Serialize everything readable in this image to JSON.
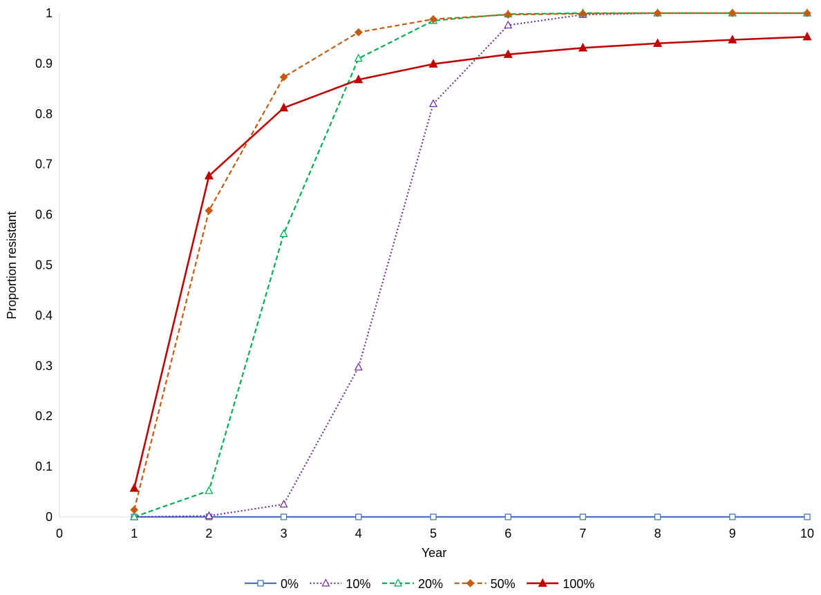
{
  "chart_data": {
    "type": "line",
    "title": "",
    "xlabel": "Year",
    "ylabel": "Proportion resistant",
    "xlim": [
      0,
      10
    ],
    "ylim": [
      0,
      1
    ],
    "x_ticks": [
      "0",
      "1",
      "2",
      "3",
      "4",
      "5",
      "6",
      "7",
      "8",
      "9",
      "10"
    ],
    "y_ticks": [
      "0",
      "0.1",
      "0.2",
      "0.3",
      "0.4",
      "0.5",
      "0.6",
      "0.7",
      "0.8",
      "0.9",
      "1"
    ],
    "grid": false,
    "legend_position": "bottom",
    "x": [
      1,
      2,
      3,
      4,
      5,
      6,
      7,
      8,
      9,
      10
    ],
    "series": [
      {
        "name": "0%",
        "color": "#4472C4",
        "marker": "open-square",
        "dash": "solid",
        "values": [
          0,
          0,
          0,
          0,
          0,
          0,
          0,
          0,
          0,
          0
        ]
      },
      {
        "name": "10%",
        "color": "#7030A0",
        "marker": "open-triangle",
        "dash": "dotted",
        "values": [
          0,
          0.002,
          0.025,
          0.297,
          0.82,
          0.976,
          0.997,
          1.0,
          1.0,
          1.0
        ]
      },
      {
        "name": "20%",
        "color": "#00B050",
        "marker": "open-triangle",
        "dash": "dashed",
        "values": [
          0,
          0.052,
          0.562,
          0.91,
          0.985,
          0.998,
          1.0,
          1.0,
          1.0,
          1.0
        ]
      },
      {
        "name": "50%",
        "color": "#C55A11",
        "marker": "filled-diamond",
        "dash": "dashed",
        "values": [
          0.014,
          0.608,
          0.873,
          0.962,
          0.988,
          0.997,
          0.999,
          1.0,
          1.0,
          1.0
        ]
      },
      {
        "name": "100%",
        "color": "#C00000",
        "marker": "filled-triangle",
        "dash": "solid",
        "values": [
          0.057,
          0.677,
          0.812,
          0.868,
          0.899,
          0.918,
          0.931,
          0.94,
          0.947,
          0.953
        ]
      }
    ]
  }
}
